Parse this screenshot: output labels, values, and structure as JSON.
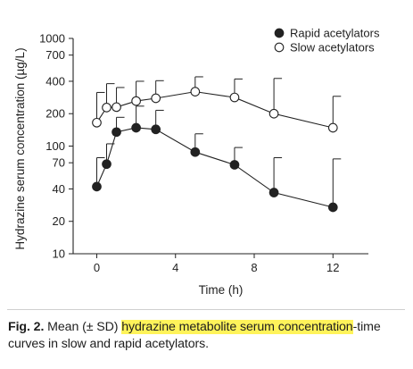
{
  "chart_data": {
    "type": "line",
    "title": "",
    "xlabel": "Time (h)",
    "ylabel": "Hydrazine serum concentration (µg/L)",
    "x_ticks": [
      0,
      4,
      8,
      12
    ],
    "xlim": [
      -1.2,
      13.8
    ],
    "y_scale": "log",
    "ylim": [
      10,
      1000
    ],
    "y_ticks": [
      10,
      20,
      40,
      70,
      100,
      200,
      400,
      700,
      1000
    ],
    "y_tick_labels": [
      "10",
      "20",
      "40",
      "70",
      "100",
      "200",
      "400",
      "700",
      "1000"
    ],
    "legend_position": "top-right",
    "series": [
      {
        "name": "Rapid acetylators",
        "marker": "filled-circle",
        "x": [
          0,
          0.5,
          1,
          2,
          3,
          5,
          7,
          9,
          12
        ],
        "y": [
          42,
          68,
          135,
          148,
          143,
          88,
          67,
          37,
          27
        ],
        "sd_upper": [
          78,
          105,
          185,
          235,
          215,
          130,
          97,
          78,
          76
        ]
      },
      {
        "name": "Slow acetylators",
        "marker": "open-circle",
        "x": [
          0,
          0.5,
          1,
          2,
          3,
          5,
          7,
          9,
          12
        ],
        "y": [
          165,
          228,
          230,
          262,
          278,
          320,
          283,
          200,
          148
        ],
        "sd_upper": [
          315,
          380,
          350,
          400,
          405,
          440,
          420,
          425,
          290
        ]
      }
    ]
  },
  "caption": {
    "label": "Fig. 2.",
    "text_before": " Mean (± SD) ",
    "highlight": "hydrazine metabolite serum concentration",
    "text_after": "-time curves in slow and rapid acetylators."
  },
  "colors": {
    "highlight": "#fff35a",
    "ink": "#222222"
  }
}
